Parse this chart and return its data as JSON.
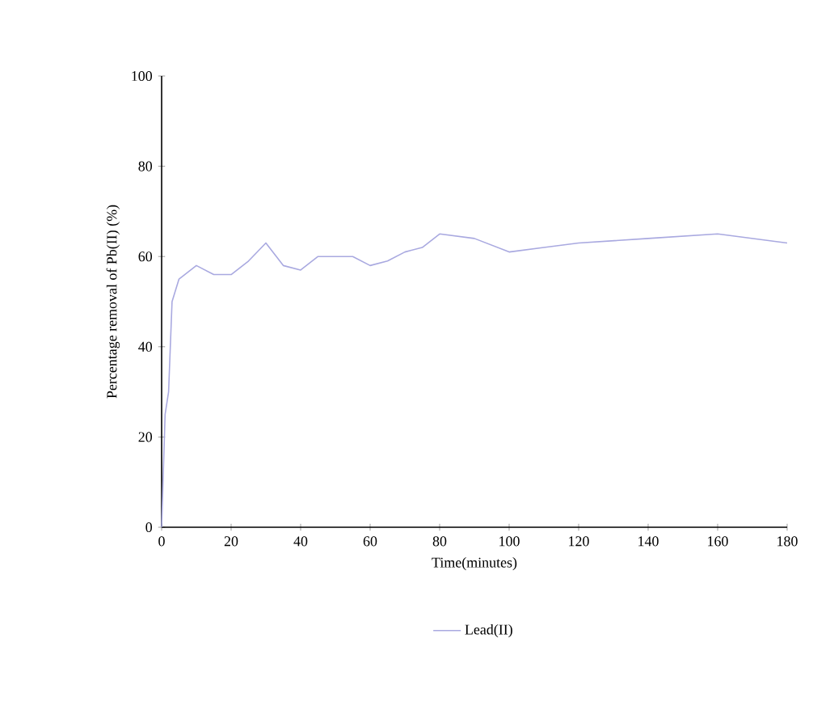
{
  "chart_data": {
    "type": "line",
    "xlabel": "Time(minutes)",
    "ylabel": "Percentage removal of Pb(II) (%)",
    "x": [
      0,
      1,
      2,
      3,
      5,
      10,
      15,
      20,
      25,
      30,
      35,
      40,
      45,
      50,
      55,
      60,
      65,
      70,
      75,
      80,
      90,
      100,
      110,
      120,
      140,
      160,
      180
    ],
    "series": [
      {
        "name": "Lead(II)",
        "color": "#a9a9e0",
        "values": [
          0,
          25,
          30,
          50,
          55,
          58,
          56,
          56,
          59,
          63,
          58,
          57,
          60,
          60,
          60,
          58,
          59,
          61,
          62,
          65,
          64,
          61,
          62,
          63,
          64,
          65,
          63
        ]
      }
    ],
    "xlim": [
      0,
      180
    ],
    "ylim": [
      0,
      100
    ],
    "xticks": [
      0,
      20,
      40,
      60,
      80,
      100,
      120,
      140,
      160,
      180
    ],
    "yticks": [
      0,
      20,
      40,
      60,
      80,
      100
    ],
    "legend": "bottom",
    "grid": false
  }
}
